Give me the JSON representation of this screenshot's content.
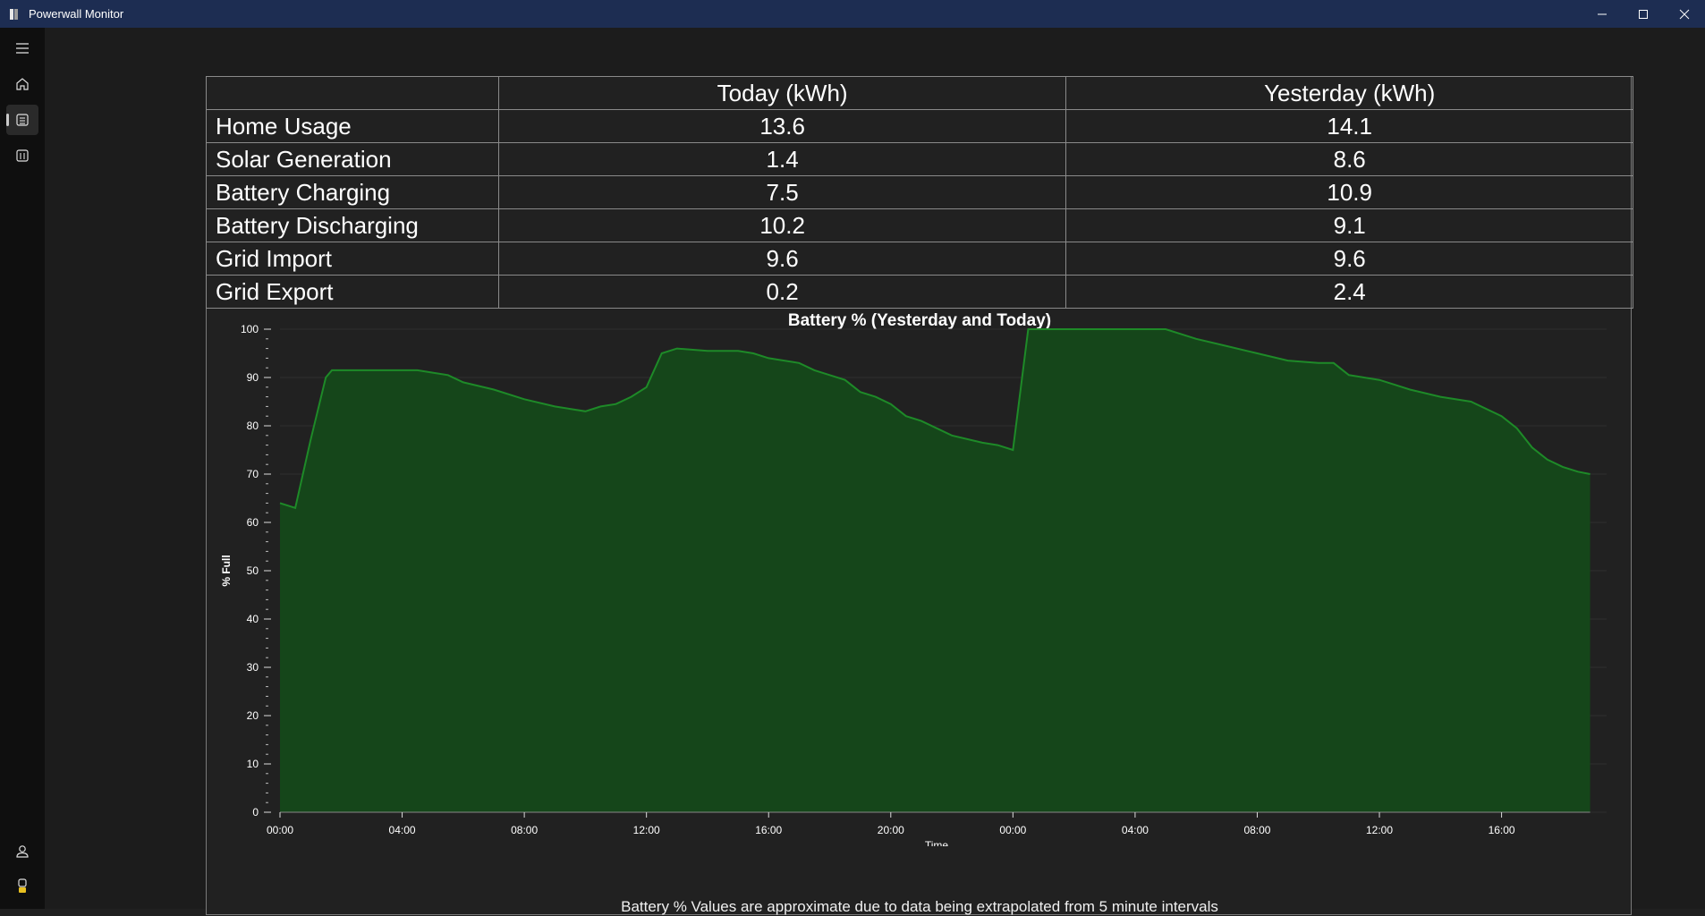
{
  "window": {
    "title": "Powerwall Monitor"
  },
  "sidebar": {
    "items": [
      {
        "icon": "hamburger-menu-icon"
      },
      {
        "icon": "home-icon"
      },
      {
        "icon": "summary-icon",
        "selected": true
      },
      {
        "icon": "calendar-icon"
      },
      {
        "icon": "account-icon"
      },
      {
        "icon": "settings-icon"
      }
    ]
  },
  "table": {
    "columns": [
      "",
      "Today (kWh)",
      "Yesterday (kWh)"
    ],
    "rows": [
      {
        "label": "Home Usage",
        "today": "13.6",
        "yesterday": "14.1"
      },
      {
        "label": "Solar Generation",
        "today": "1.4",
        "yesterday": "8.6"
      },
      {
        "label": "Battery Charging",
        "today": "7.5",
        "yesterday": "10.9"
      },
      {
        "label": "Battery Discharging",
        "today": "10.2",
        "yesterday": "9.1"
      },
      {
        "label": "Grid Import",
        "today": "9.6",
        "yesterday": "9.6"
      },
      {
        "label": "Grid Export",
        "today": "0.2",
        "yesterday": "2.4"
      }
    ]
  },
  "chart_data": {
    "type": "area",
    "title": "Battery % (Yesterday and Today)",
    "xlabel": "Time",
    "ylabel": "% Full",
    "ylim": [
      0,
      100
    ],
    "yticks": [
      0,
      10,
      20,
      30,
      40,
      50,
      60,
      70,
      80,
      90,
      100
    ],
    "xlim": [
      0,
      43
    ],
    "xtick_positions": [
      0,
      4,
      8,
      12,
      16,
      20,
      24,
      28,
      32,
      36,
      40
    ],
    "xtick_labels": [
      "00:00",
      "04:00",
      "08:00",
      "12:00",
      "16:00",
      "20:00",
      "00:00",
      "04:00",
      "08:00",
      "12:00",
      "16:00"
    ],
    "grid": true,
    "colors": {
      "fill": "#15461a",
      "line": "#1e8a28"
    },
    "x": [
      0,
      0.5,
      1.0,
      1.5,
      1.7,
      2.0,
      3.0,
      4.0,
      4.5,
      5.0,
      5.5,
      6.0,
      7.0,
      8.0,
      9.0,
      9.5,
      10.0,
      10.5,
      11.0,
      11.5,
      12.0,
      12.5,
      13.0,
      14.0,
      15.0,
      15.5,
      16.0,
      17.0,
      17.5,
      18.0,
      18.5,
      19.0,
      19.5,
      20.0,
      20.5,
      21.0,
      22.0,
      23.0,
      23.5,
      24.0,
      24.5,
      25.0,
      26.0,
      27.0,
      28.0,
      29.0,
      30.0,
      31.0,
      32.0,
      33.0,
      34.0,
      34.5,
      35.0,
      36.0,
      36.5,
      37.0,
      38.0,
      39.0,
      40.0,
      40.5,
      41.0,
      41.5,
      42.0,
      42.5,
      42.9
    ],
    "y": [
      64,
      63,
      77,
      90,
      91.5,
      91.5,
      91.5,
      91.5,
      91.5,
      91,
      90.5,
      89,
      87.5,
      85.5,
      84,
      83.5,
      83,
      84,
      84.5,
      86,
      88,
      95,
      96,
      95.5,
      95.5,
      95,
      94,
      93,
      91.5,
      90.5,
      89.5,
      87,
      86,
      84.5,
      82,
      81,
      78,
      76.5,
      76,
      75,
      100,
      100,
      100,
      100,
      100,
      100,
      98,
      96.5,
      95,
      93.5,
      93,
      93,
      90.5,
      89.5,
      88.5,
      87.5,
      86,
      85,
      82,
      79.5,
      75.5,
      73,
      71.5,
      70.5,
      70
    ]
  },
  "footnote": "Battery % Values are approximate due to data being extrapolated from 5 minute intervals"
}
